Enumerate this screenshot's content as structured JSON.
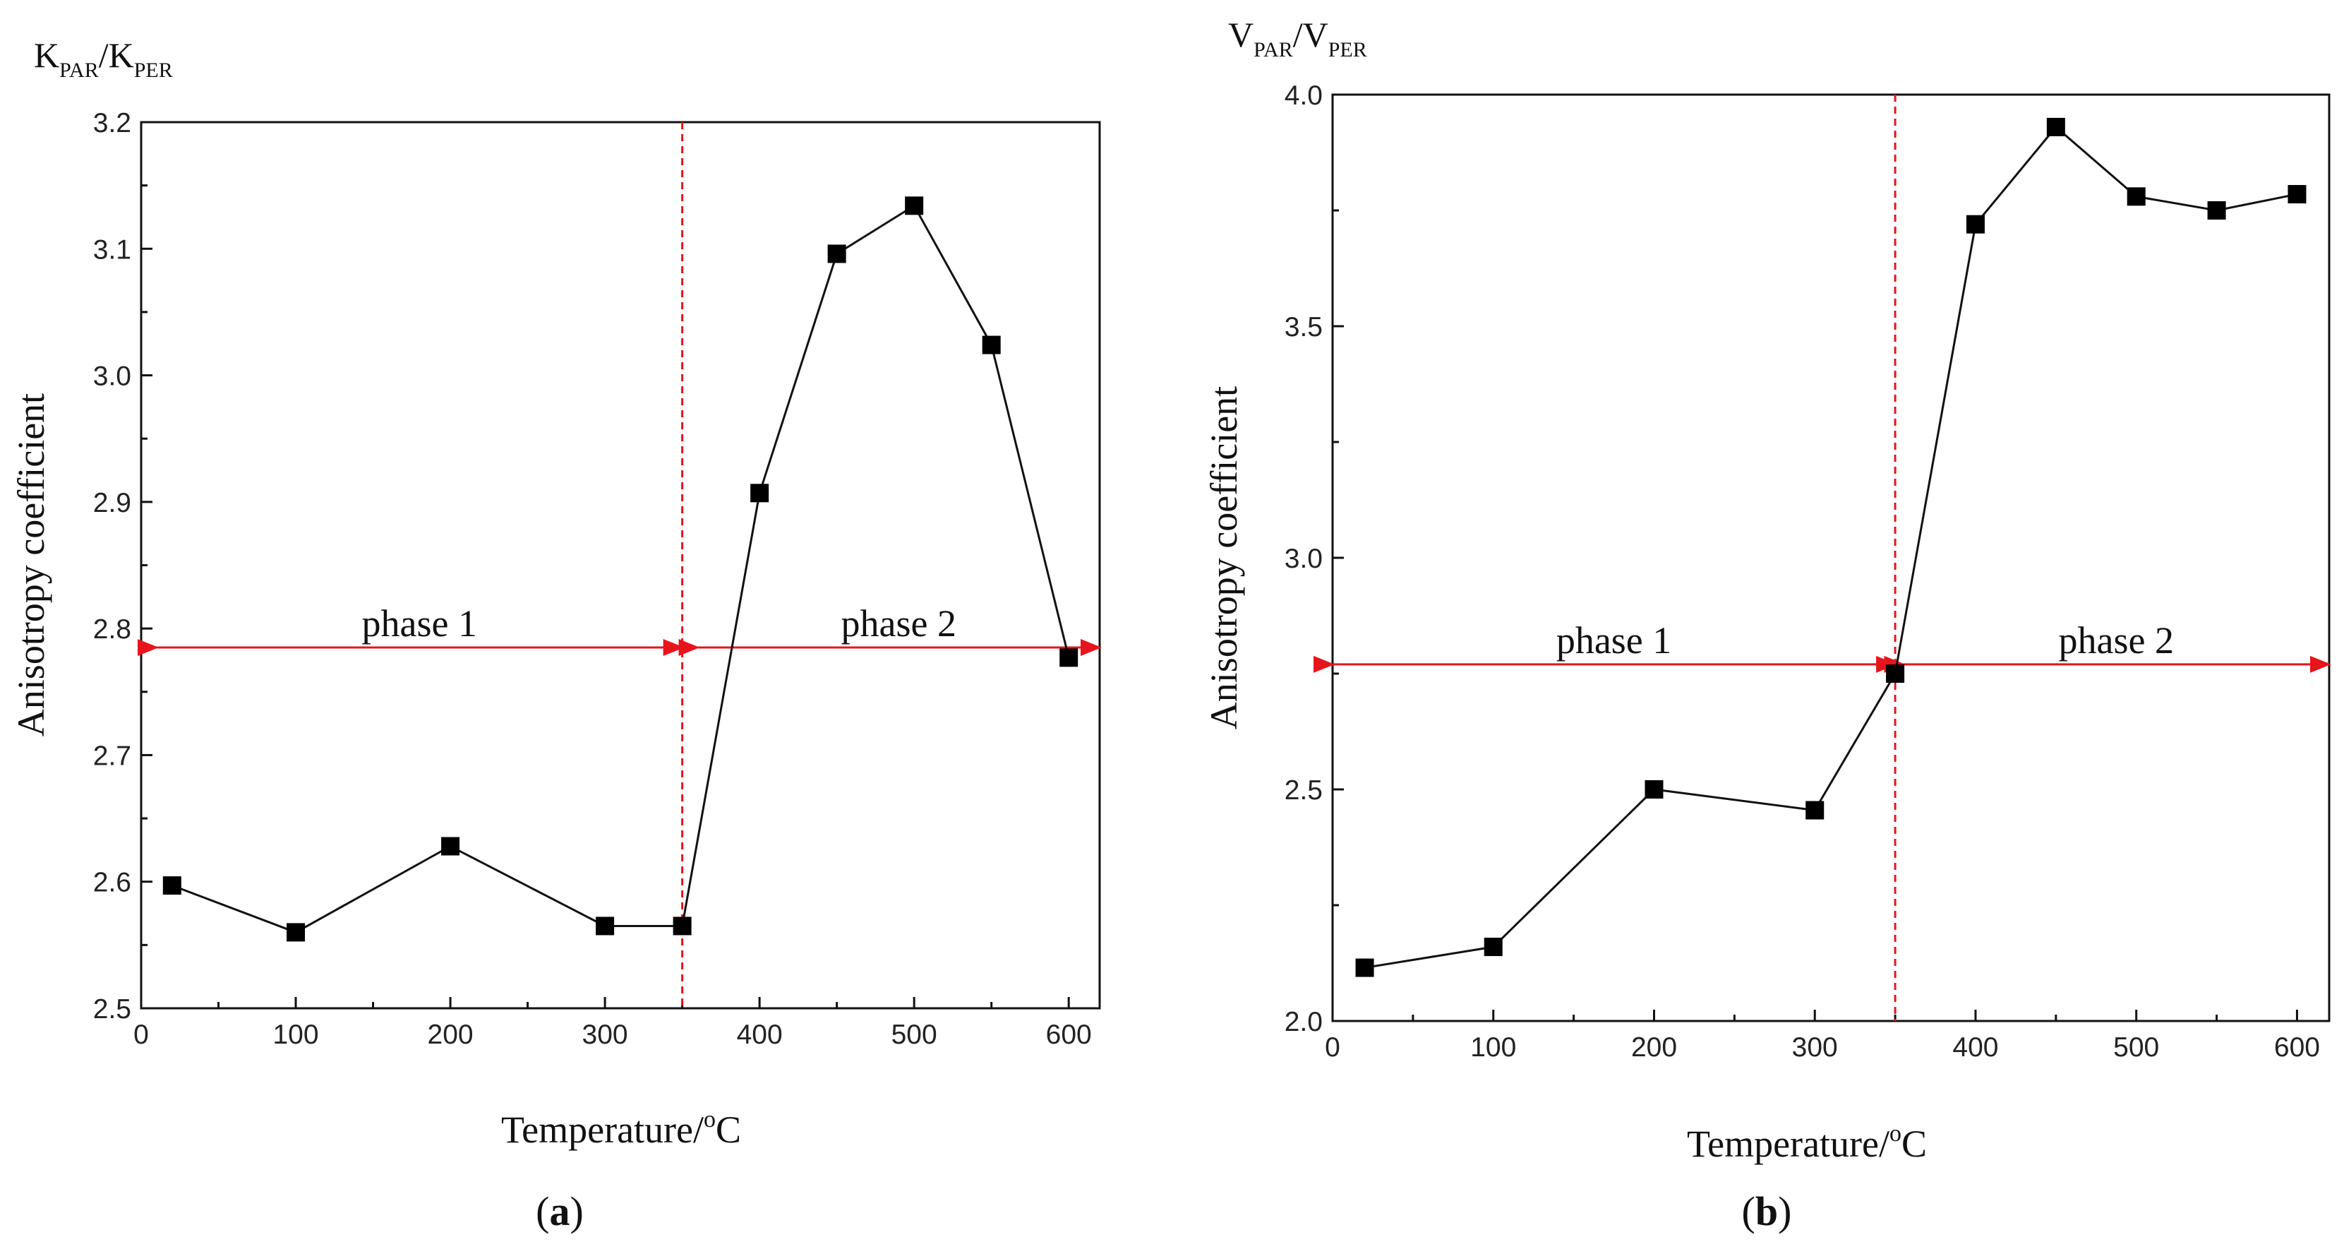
{
  "chart_data": [
    {
      "type": "line",
      "panel_label": "a",
      "ratio_label": {
        "main1": "K",
        "sub1": "PAR",
        "sep": "/",
        "main2": "K",
        "sub2": "PER"
      },
      "xlabel": "Temperature/",
      "xlabel_unit": {
        "sup": "o",
        "main": "C"
      },
      "ylabel": "Anisotropy coefficient",
      "xlim": [
        0,
        620
      ],
      "ylim": [
        2.5,
        3.2
      ],
      "xticks": [
        0,
        100,
        200,
        300,
        400,
        500,
        600
      ],
      "xtick_labels": [
        "0",
        "100",
        "200",
        "300",
        "400",
        "500",
        "600"
      ],
      "yticks": [
        2.5,
        2.6,
        2.7,
        2.8,
        2.9,
        3.0,
        3.1,
        3.2
      ],
      "ytick_labels": [
        "2.5",
        "2.6",
        "2.7",
        "2.8",
        "2.9",
        "3.0",
        "3.1",
        "3.2"
      ],
      "series": [
        {
          "name": "K_PAR/K_PER",
          "marker": "square",
          "x": [
            20,
            100,
            200,
            300,
            350,
            400,
            450,
            500,
            550,
            600
          ],
          "y": [
            2.597,
            2.56,
            2.628,
            2.565,
            2.565,
            2.907,
            3.096,
            3.134,
            3.024,
            2.777
          ]
        }
      ],
      "divider_x": 350,
      "phase_arrow_y": 2.785,
      "phases": [
        {
          "label": "phase 1",
          "x_from": 10,
          "x_to": 350
        },
        {
          "label": "phase 2",
          "x_from": 360,
          "x_to": 620
        }
      ],
      "accent_color": "#e8141b"
    },
    {
      "type": "line",
      "panel_label": "b",
      "ratio_label": {
        "main1": "V",
        "sub1": "PAR",
        "sep": "/",
        "main2": "V",
        "sub2": "PER"
      },
      "xlabel": "Temperature/",
      "xlabel_unit": {
        "sup": "o",
        "main": "C"
      },
      "ylabel": "Anisotropy coefficient",
      "xlim": [
        0,
        620
      ],
      "ylim": [
        2.0,
        4.0
      ],
      "xticks": [
        0,
        100,
        200,
        300,
        400,
        500,
        600
      ],
      "xtick_labels": [
        "0",
        "100",
        "200",
        "300",
        "400",
        "500",
        "600"
      ],
      "yticks": [
        2.0,
        2.5,
        3.0,
        3.5,
        4.0
      ],
      "ytick_labels": [
        "2.0",
        "2.5",
        "3.0",
        "3.5",
        "4.0"
      ],
      "series": [
        {
          "name": "V_PAR/V_PER",
          "marker": "square",
          "x": [
            20,
            100,
            200,
            300,
            350,
            400,
            450,
            500,
            550,
            600
          ],
          "y": [
            2.115,
            2.16,
            2.5,
            2.455,
            2.75,
            3.72,
            3.93,
            3.78,
            3.75,
            3.785
          ]
        }
      ],
      "divider_x": 350,
      "phase_arrow_y": 2.77,
      "phases": [
        {
          "label": "phase 1",
          "x_from": 0,
          "x_to": 350
        },
        {
          "label": "phase 2",
          "x_from": 355,
          "x_to": 620
        }
      ],
      "accent_color": "#e8141b"
    }
  ]
}
